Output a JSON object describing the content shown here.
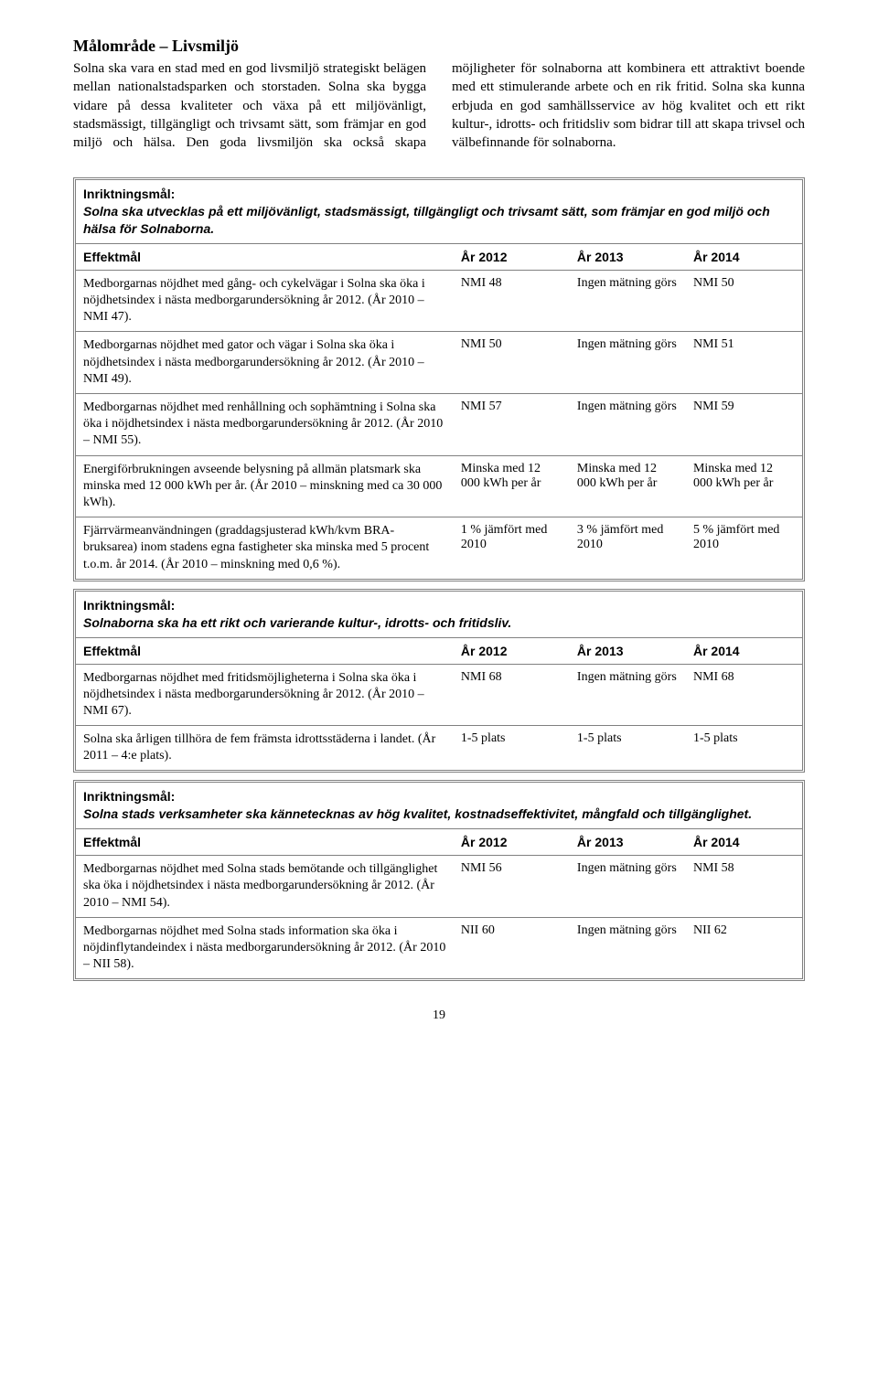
{
  "heading": "Målområde – Livsmiljö",
  "intro_para": "Solna ska vara en stad med en god livsmiljö strategiskt belägen mellan nationalstadsparken och storstaden. Solna ska bygga vidare på dessa kvaliteter och växa på ett miljövänligt, stadsmässigt, tillgängligt och trivsamt sätt, som främjar en god miljö och hälsa. Den goda livsmiljön ska också skapa möjligheter för solnaborna att kombinera ett attraktivt boende med ett stimulerande arbete och en rik fritid. Solna ska kunna erbjuda en god samhällsservice av hög kvalitet och ett rikt kultur-, idrotts- och fritidsliv som bidrar till att skapa trivsel och välbefinnande för solnaborna.",
  "labels": {
    "inriktning": "Inriktningsmål:",
    "effektmal": "Effektmål",
    "y2012": "År 2012",
    "y2013": "År 2013",
    "y2014": "År 2014"
  },
  "goals": [
    {
      "text": "Solna ska utvecklas på ett miljövänligt, stadsmässigt, tillgängligt och trivsamt sätt, som främjar en god miljö och hälsa för Solnaborna.",
      "rows": [
        {
          "desc": "Medborgarnas nöjdhet med gång- och cykelvägar i Solna ska öka i nöjdhetsindex i nästa medborgarundersökning år 2012. (År 2010 – NMI 47).",
          "y2012": "NMI 48",
          "y2013": "Ingen mätning görs",
          "y2014": "NMI 50"
        },
        {
          "desc": "Medborgarnas nöjdhet med gator och vägar i Solna ska öka i nöjdhetsindex i nästa medborgarundersökning år 2012. (År 2010 – NMI 49).",
          "y2012": "NMI 50",
          "y2013": "Ingen mätning görs",
          "y2014": "NMI 51"
        },
        {
          "desc": "Medborgarnas nöjdhet med renhållning och sophämtning i Solna ska öka i nöjdhetsindex i nästa medborgarundersökning år 2012. (År 2010 – NMI 55).",
          "y2012": "NMI 57",
          "y2013": "Ingen mätning görs",
          "y2014": "NMI 59"
        },
        {
          "desc": "Energiförbrukningen avseende belysning på allmän platsmark ska minska med 12 000 kWh per år. (År 2010 – minskning med ca 30 000 kWh).",
          "y2012": "Minska med 12 000 kWh per år",
          "y2013": "Minska med 12 000 kWh per år",
          "y2014": "Minska med 12 000 kWh per år"
        },
        {
          "desc": "Fjärrvärmeanvändningen (graddagsjusterad kWh/kvm BRA-bruksarea) inom stadens egna fastigheter ska minska med 5 procent t.o.m. år 2014. (År 2010 – minskning med 0,6 %).",
          "y2012": "1 % jämfört med 2010",
          "y2013": "3 % jämfört med 2010",
          "y2014": "5 % jämfört med 2010"
        }
      ]
    },
    {
      "text": "Solnaborna ska ha ett rikt och varierande kultur-, idrotts- och fritidsliv.",
      "rows": [
        {
          "desc": "Medborgarnas nöjdhet med fritidsmöjligheterna i Solna ska öka i nöjdhetsindex i nästa medborgarundersökning år 2012. (År 2010 – NMI 67).",
          "y2012": "NMI 68",
          "y2013": "Ingen mätning görs",
          "y2014": "NMI 68"
        },
        {
          "desc": "Solna ska årligen tillhöra de fem främsta idrottsstäderna i landet. (År 2011 – 4:e plats).",
          "y2012": "1-5 plats",
          "y2013": "1-5 plats",
          "y2014": "1-5 plats"
        }
      ]
    },
    {
      "text": "Solna stads verksamheter ska kännetecknas av hög kvalitet, kostnadseffektivitet, mångfald och tillgänglighet.",
      "rows": [
        {
          "desc": "Medborgarnas nöjdhet med Solna stads bemötande och tillgänglighet ska öka i nöjdhetsindex i nästa medborgarundersökning år 2012. (År 2010 – NMI 54).",
          "y2012": "NMI 56",
          "y2013": "Ingen mätning görs",
          "y2014": "NMI 58"
        },
        {
          "desc": "Medborgarnas nöjdhet med Solna stads information ska öka i nöjdinflytandeindex i nästa medborgarundersökning år 2012. (År 2010 – NII 58).",
          "y2012": "NII 60",
          "y2013": "Ingen mätning görs",
          "y2014": "NII 62"
        }
      ]
    }
  ],
  "page_number": "19"
}
